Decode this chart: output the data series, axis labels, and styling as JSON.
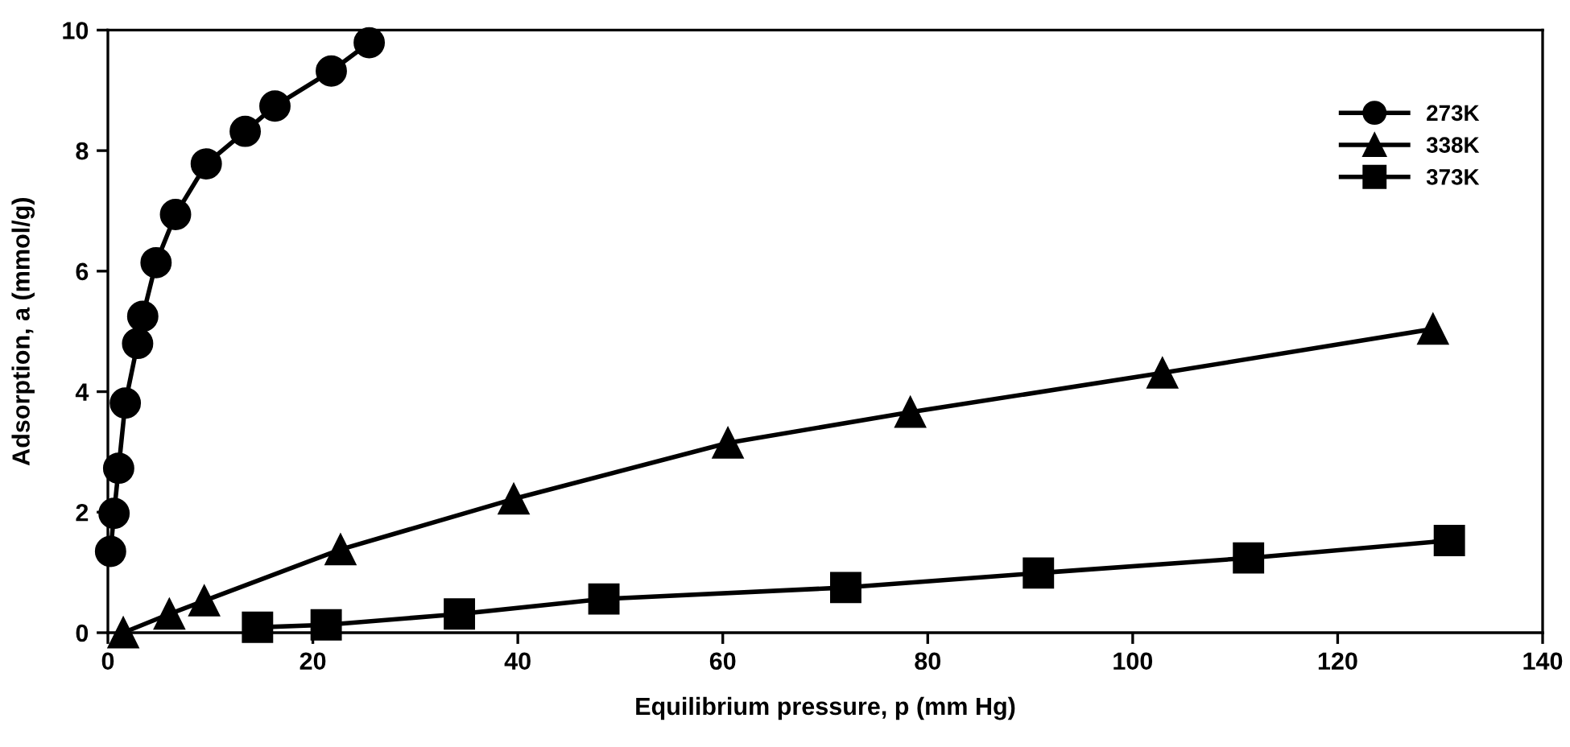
{
  "chart_data": {
    "type": "line",
    "xlabel": "Equilibrium pressure, p (mm Hg)",
    "ylabel": "Adsorption, a (mmol/g)",
    "xlim": [
      0,
      140
    ],
    "xticks": [
      0,
      20,
      40,
      60,
      80,
      100,
      120,
      140
    ],
    "ylim": [
      0,
      10
    ],
    "yticks": [
      0,
      2,
      4,
      6,
      8,
      10
    ],
    "grid": false,
    "legend": "top right",
    "line_style": "solid",
    "series": [
      {
        "name": "273K",
        "color": "#000000",
        "marker": "circle",
        "x": [
          0.26,
          0.6,
          1.05,
          1.7,
          2.9,
          3.4,
          4.7,
          6.6,
          9.6,
          13.4,
          16.3,
          21.8,
          25.5
        ],
        "values": [
          1.35,
          1.98,
          2.73,
          3.81,
          4.8,
          5.25,
          6.14,
          6.94,
          7.78,
          8.32,
          8.74,
          9.32,
          9.79
        ]
      },
      {
        "name": "338K",
        "color": "#000000",
        "marker": "triangle",
        "x": [
          1.5,
          6.0,
          9.4,
          22.7,
          39.6,
          60.5,
          78.3,
          102.9,
          129.3
        ],
        "values": [
          0.0,
          0.31,
          0.53,
          1.38,
          2.22,
          3.15,
          3.66,
          4.31,
          5.04
        ]
      },
      {
        "name": "373K",
        "color": "#000000",
        "marker": "square",
        "x": [
          14.6,
          21.3,
          34.3,
          48.4,
          72.0,
          90.8,
          111.3,
          130.9
        ],
        "values": [
          0.09,
          0.13,
          0.31,
          0.56,
          0.75,
          0.99,
          1.24,
          1.53
        ]
      }
    ]
  }
}
